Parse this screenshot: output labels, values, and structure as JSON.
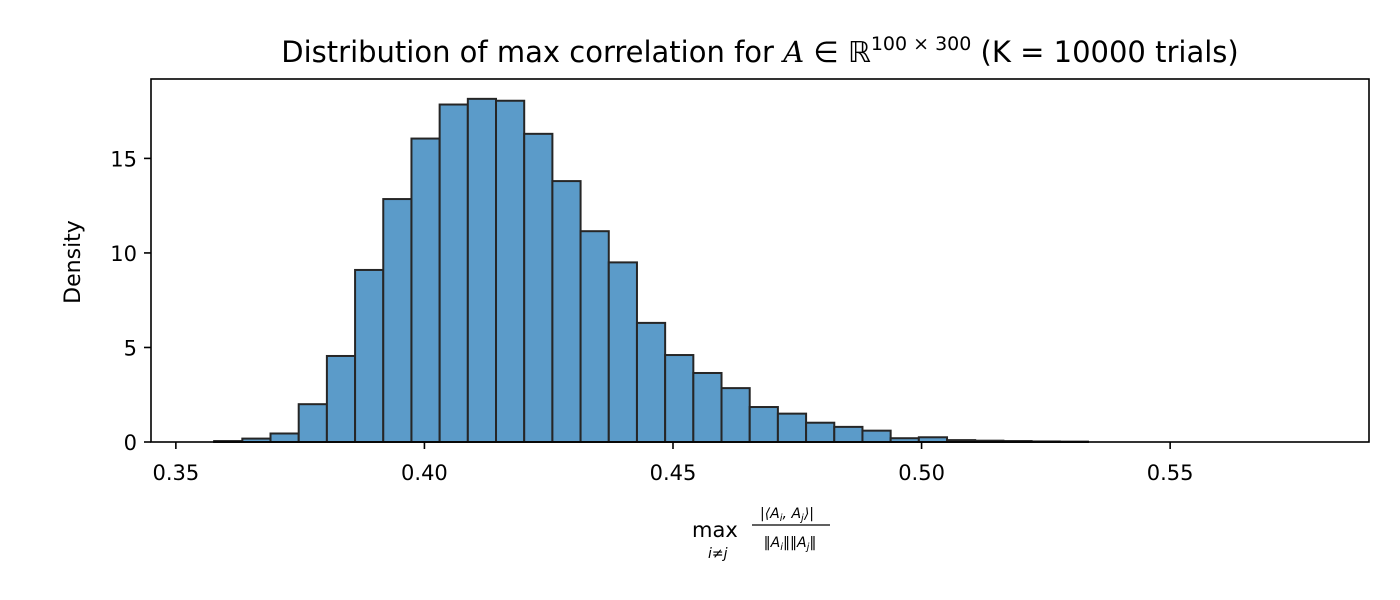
{
  "chart_data": {
    "type": "bar",
    "title_parts": {
      "prefix": "Distribution of max correlation for ",
      "var": "A",
      "elem": " ∈ ",
      "space": "ℝ",
      "dims": "100 × 300",
      "trials": " (K = 10000 trials)"
    },
    "xlabel": {
      "op": "max",
      "sub": "i≠j",
      "numerator": "|⟨A",
      "numerator_i": "i",
      "numerator_mid": ", A",
      "numerator_j": "j",
      "numerator_end": "⟩|",
      "denominator": "‖A",
      "denominator_i": "i",
      "denominator_mid": "‖‖A",
      "denominator_j": "j",
      "denominator_end": "‖"
    },
    "ylabel": "Density",
    "xlim": [
      0.345,
      0.59
    ],
    "ylim": [
      0,
      19.2
    ],
    "xticks": [
      0.35,
      0.4,
      0.45,
      0.5,
      0.55
    ],
    "xtick_labels": [
      "0.35",
      "0.40",
      "0.45",
      "0.50",
      "0.55"
    ],
    "yticks": [
      0,
      5,
      10,
      15
    ],
    "ytick_labels": [
      "0",
      "5",
      "10",
      "15"
    ],
    "bin_start": 0.3577,
    "bin_width": 0.00567,
    "values": [
      0.05,
      0.18,
      0.45,
      2.0,
      4.55,
      9.1,
      12.85,
      16.05,
      17.85,
      18.15,
      18.05,
      16.3,
      13.8,
      11.15,
      9.5,
      6.3,
      4.6,
      3.65,
      2.85,
      1.85,
      1.5,
      1.02,
      0.8,
      0.6,
      0.2,
      0.25,
      0.1,
      0.07,
      0.05,
      0.03,
      0.02
    ],
    "bar_color": "#5b9bc9",
    "edge_color": "#262626",
    "grid": false
  }
}
